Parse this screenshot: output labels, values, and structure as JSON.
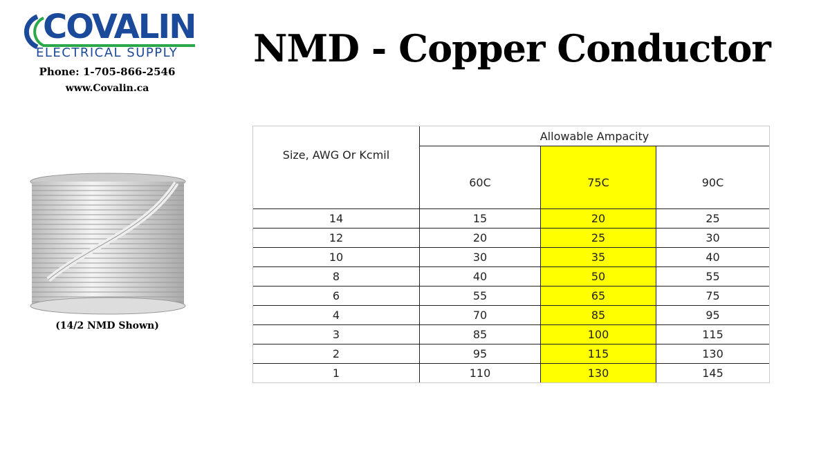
{
  "header": {
    "brand": "COVALIN",
    "brand_sub": "ELECTRICAL SUPPLY",
    "phone": "Phone: 1-705-866-2546",
    "website": "www.Covalin.ca",
    "title": "NMD - Copper Conductor"
  },
  "product": {
    "caption": "(14/2 NMD Shown)"
  },
  "colors": {
    "brand_blue": "#1b4a9a",
    "brand_green": "#2aa84a",
    "highlight": "#ffff00"
  },
  "table": {
    "size_header": "Size, AWG Or Kcmil",
    "group_header": "Allowable Ampacity",
    "columns": [
      "60C",
      "75C",
      "90C"
    ],
    "highlighted_column": "75C",
    "rows": [
      [
        "14",
        "15",
        "20",
        "25"
      ],
      [
        "12",
        "20",
        "25",
        "30"
      ],
      [
        "10",
        "30",
        "35",
        "40"
      ],
      [
        "8",
        "40",
        "50",
        "55"
      ],
      [
        "6",
        "55",
        "65",
        "75"
      ],
      [
        "4",
        "70",
        "85",
        "95"
      ],
      [
        "3",
        "85",
        "100",
        "115"
      ],
      [
        "2",
        "95",
        "115",
        "130"
      ],
      [
        "1",
        "110",
        "130",
        "145"
      ]
    ]
  }
}
